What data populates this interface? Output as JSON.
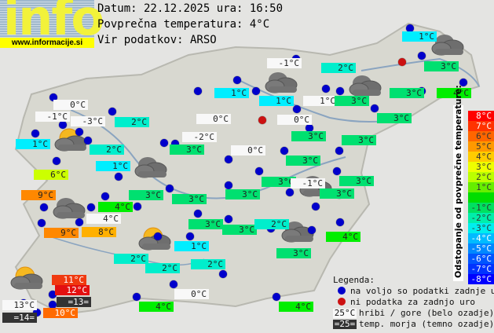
{
  "logo": {
    "text": "info",
    "url": "www.informacije.si"
  },
  "header": {
    "date_line": "Datum: 22.12.2025 ura: 16:50",
    "avg_line": "Povprečna temperatura: 4°C",
    "source_line": "Vir podatkov: ARSO"
  },
  "colors": {
    "station_ok": "#0000cc",
    "station_missing": "#cc1111",
    "mountain_bg": "#f8f8f8",
    "sea_bg": "#333333"
  },
  "stations": [
    {
      "t": "1°C",
      "c": "#00eeff"
    },
    {
      "t": "-1°C",
      "c": "#f8f8f8"
    },
    {
      "t": "2°C",
      "c": "#00eecc"
    },
    {
      "t": "3°C",
      "c": "#00e070"
    },
    {
      "t": "1°C",
      "c": "#00eeff"
    },
    {
      "t": "1°C",
      "c": "#00eeff"
    },
    {
      "t": "1°C",
      "c": "#f8f8f8"
    },
    {
      "t": "3°C",
      "c": "#00e070"
    },
    {
      "t": "3°C",
      "c": "#00e070"
    },
    {
      "t": "4°C",
      "c": "#00ee00"
    },
    {
      "t": "0°C",
      "c": "#f8f8f8"
    },
    {
      "t": "-1°C",
      "c": "#f8f8f8"
    },
    {
      "t": "-3°C",
      "c": "#f8f8f8"
    },
    {
      "t": "2°C",
      "c": "#00eecc"
    },
    {
      "t": "0°C",
      "c": "#f8f8f8"
    },
    {
      "t": "0°C",
      "c": "#f8f8f8"
    },
    {
      "t": "3°C",
      "c": "#00e070"
    },
    {
      "t": "1°C",
      "c": "#00eeff"
    },
    {
      "t": "2°C",
      "c": "#00eecc"
    },
    {
      "t": "-2°C",
      "c": "#f8f8f8"
    },
    {
      "t": "3°C",
      "c": "#00e070"
    },
    {
      "t": "0°C",
      "c": "#f8f8f8"
    },
    {
      "t": "3°C",
      "c": "#00e070"
    },
    {
      "t": "3°C",
      "c": "#00e070"
    },
    {
      "t": "1°C",
      "c": "#00eeff"
    },
    {
      "t": "3°C",
      "c": "#00e070"
    },
    {
      "t": "6°C",
      "c": "#ccff00"
    },
    {
      "t": "3°C",
      "c": "#00e070"
    },
    {
      "t": "-1°C",
      "c": "#f8f8f8"
    },
    {
      "t": "3°C",
      "c": "#00e070"
    },
    {
      "t": "9°C",
      "c": "#ff8800"
    },
    {
      "t": "3°C",
      "c": "#00e070"
    },
    {
      "t": "3°C",
      "c": "#00e070"
    },
    {
      "t": "3°C",
      "c": "#00e070"
    },
    {
      "t": "3°C",
      "c": "#00e070"
    },
    {
      "t": "4°C",
      "c": "#00ee00"
    },
    {
      "t": "4°C",
      "c": "#f8f8f8"
    },
    {
      "t": "3°C",
      "c": "#00e070"
    },
    {
      "t": "3°C",
      "c": "#00e070"
    },
    {
      "t": "2°C",
      "c": "#00eecc"
    },
    {
      "t": "4°C",
      "c": "#00ee00"
    },
    {
      "t": "9°C",
      "c": "#ff8800"
    },
    {
      "t": "8°C",
      "c": "#ffb000"
    },
    {
      "t": "1°C",
      "c": "#00eeff"
    },
    {
      "t": "3°C",
      "c": "#00e070"
    },
    {
      "t": "2°C",
      "c": "#00eecc"
    },
    {
      "t": "2°C",
      "c": "#00eecc"
    },
    {
      "t": "2°C",
      "c": "#00eecc"
    },
    {
      "t": "11°C",
      "c": "#f03a10"
    },
    {
      "t": "12°C",
      "c": "#e31010"
    },
    {
      "t": "=13=",
      "c": "#333333"
    },
    {
      "t": "13°C",
      "c": "#f8f8f8"
    },
    {
      "t": "=14=",
      "c": "#333333"
    },
    {
      "t": "10°C",
      "c": "#ff6a00"
    },
    {
      "t": "0°C",
      "c": "#f8f8f8"
    },
    {
      "t": "4°C",
      "c": "#00ee00"
    },
    {
      "t": "4°C",
      "c": "#00ee00"
    }
  ],
  "scale": {
    "title": "Odstopanje od povprečne temperature:",
    "steps": [
      {
        "t": "8°C",
        "c": "#ff0000"
      },
      {
        "t": "7°C",
        "c": "#ff3300"
      },
      {
        "t": "6°C",
        "c": "#ff6600"
      },
      {
        "t": "5°C",
        "c": "#ff9900"
      },
      {
        "t": "4°C",
        "c": "#ffcc00"
      },
      {
        "t": "3°C",
        "c": "#eeff00"
      },
      {
        "t": "2°C",
        "c": "#bbff00"
      },
      {
        "t": "1°C",
        "c": "#66ee00"
      },
      {
        "t": "",
        "c": "#00dd00"
      },
      {
        "t": "-1°C",
        "c": "#00e060"
      },
      {
        "t": "-2°C",
        "c": "#00eeaa"
      },
      {
        "t": "-3°C",
        "c": "#00eeee"
      },
      {
        "t": "-4°C",
        "c": "#00bbff"
      },
      {
        "t": "-5°C",
        "c": "#0088ff"
      },
      {
        "t": "-6°C",
        "c": "#0055ff"
      },
      {
        "t": "-7°C",
        "c": "#0033ff"
      },
      {
        "t": "-8°C",
        "c": "#0000ff"
      }
    ]
  },
  "legend": {
    "title": "Legenda:",
    "available": "na voljo so podatki zadnje ure",
    "missing": "ni podatka za zadnjo uro",
    "mountain_sample": "25°C",
    "mountain": "hribi / gore (belo ozadje)",
    "sea_sample": "=25=",
    "sea": "temp. morja (temno ozadje)"
  }
}
